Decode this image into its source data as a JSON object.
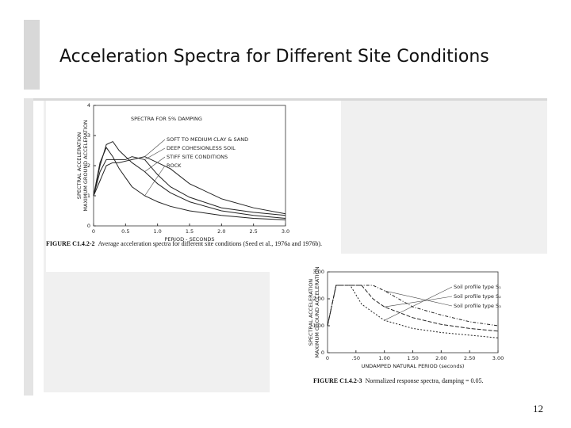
{
  "slide": {
    "title": "Acceleration Spectra for Different Site Conditions",
    "page_number": "12"
  },
  "chart_data": [
    {
      "type": "line",
      "annotation": "SPECTRA FOR 5% DAMPING",
      "xlabel": "PERIOD - SECONDS",
      "ylabel": "SPECTRAL ACCELERATION",
      "ylabel2": "MAXIMUM GROUND ACCELERATION",
      "caption_label": "FIGURE C1.4.2-2",
      "caption": "Average acceleration spectra for different site conditions (Seed et al., 1976a and 1976b).",
      "xlim": [
        0,
        3
      ],
      "ylim": [
        0,
        4
      ],
      "xticks": [
        0,
        {
          "value": 0.5,
          "label": "0.5"
        },
        {
          "value": 1,
          "label": "1.0"
        },
        {
          "value": 1.5,
          "label": "1.5"
        },
        {
          "value": 2,
          "label": "2.0"
        },
        {
          "value": 2.5,
          "label": "2.5"
        },
        {
          "value": 3,
          "label": "3.0"
        }
      ],
      "yticks": [
        0,
        1,
        2,
        3,
        4
      ],
      "x": [
        0,
        0.1,
        0.2,
        0.3,
        0.4,
        0.5,
        0.6,
        0.8,
        1.0,
        1.2,
        1.5,
        2.0,
        2.5,
        3.0
      ],
      "series": [
        {
          "name": "SOFT TO MEDIUM CLAY & SAND",
          "color": "#222222",
          "values": [
            1.0,
            1.5,
            2.0,
            2.1,
            2.1,
            2.15,
            2.2,
            2.3,
            2.1,
            1.9,
            1.4,
            0.9,
            0.6,
            0.4
          ]
        },
        {
          "name": "DEEP COHESIONLESS SOIL",
          "color": "#222222",
          "values": [
            1.0,
            1.8,
            2.2,
            2.2,
            2.2,
            2.2,
            2.3,
            2.2,
            1.7,
            1.3,
            0.95,
            0.6,
            0.45,
            0.35
          ]
        },
        {
          "name": "STIFF SITE CONDITIONS",
          "color": "#222222",
          "values": [
            1.0,
            2.0,
            2.7,
            2.8,
            2.5,
            2.3,
            2.1,
            1.8,
            1.4,
            1.1,
            0.8,
            0.5,
            0.35,
            0.25
          ]
        },
        {
          "name": "ROCK",
          "color": "#222222",
          "values": [
            1.0,
            2.1,
            2.6,
            2.3,
            1.9,
            1.6,
            1.3,
            1.0,
            0.8,
            0.65,
            0.5,
            0.35,
            0.25,
            0.2
          ]
        }
      ]
    },
    {
      "type": "line",
      "xlabel": "UNDAMPED NATURAL PERIOD (seconds)",
      "ylabel": "SPECTRAL ACCELERATION",
      "ylabel2": "MAXIMUM GROUND ACCELERATION",
      "caption_label": "FIGURE C1.4.2-3",
      "caption": "Normalized response spectra, damping = 0.05.",
      "xlim": [
        0,
        3
      ],
      "ylim": [
        0,
        3
      ],
      "xticks": [
        0,
        {
          "value": 0.5,
          "label": ".50"
        },
        {
          "value": 1,
          "label": "1.00"
        },
        {
          "value": 1.5,
          "label": "1.50"
        },
        {
          "value": 2,
          "label": "2.00"
        },
        {
          "value": 2.5,
          "label": "2.50"
        },
        {
          "value": 3,
          "label": "3.00"
        }
      ],
      "yticks": [
        0,
        {
          "value": 1,
          "label": "1.00"
        },
        {
          "value": 2,
          "label": "2.00"
        },
        {
          "value": 3,
          "label": "3.00"
        }
      ],
      "x": [
        0,
        0.15,
        0.4,
        0.6,
        0.8,
        1.0,
        1.5,
        2.0,
        2.5,
        3.0
      ],
      "series": [
        {
          "name": "Soil profile type S₁",
          "color": "#222222",
          "values": [
            1.0,
            2.5,
            2.5,
            1.8,
            1.5,
            1.2,
            0.9,
            0.75,
            0.65,
            0.55
          ]
        },
        {
          "name": "Soil profile type S₂",
          "color": "#222222",
          "values": [
            1.0,
            2.5,
            2.5,
            2.5,
            2.0,
            1.7,
            1.3,
            1.05,
            0.9,
            0.8
          ]
        },
        {
          "name": "Soil profile type S₃",
          "color": "#222222",
          "values": [
            1.0,
            2.5,
            2.5,
            2.5,
            2.5,
            2.3,
            1.7,
            1.4,
            1.15,
            1.0
          ]
        }
      ]
    }
  ]
}
